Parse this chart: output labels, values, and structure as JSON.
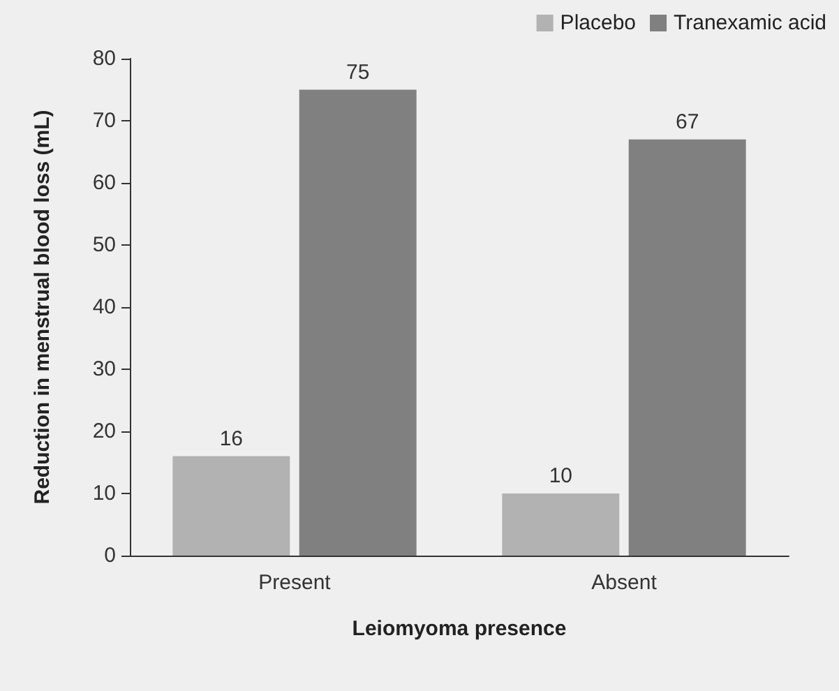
{
  "chart_data": {
    "type": "bar",
    "xlabel": "Leiomyoma presence",
    "ylabel": "Reduction in menstrual blood loss (mL)",
    "categories": [
      "Present",
      "Absent"
    ],
    "series": [
      {
        "name": "Placebo",
        "color": "#b2b2b2",
        "values": [
          16,
          10
        ]
      },
      {
        "name": "Tranexamic acid",
        "color": "#808080",
        "values": [
          75,
          67
        ]
      }
    ],
    "ylim": [
      0,
      80
    ],
    "yticks": [
      0,
      10,
      20,
      30,
      40,
      50,
      60,
      70,
      80
    ],
    "grid": false,
    "legend": "top right",
    "data_labels": true
  }
}
